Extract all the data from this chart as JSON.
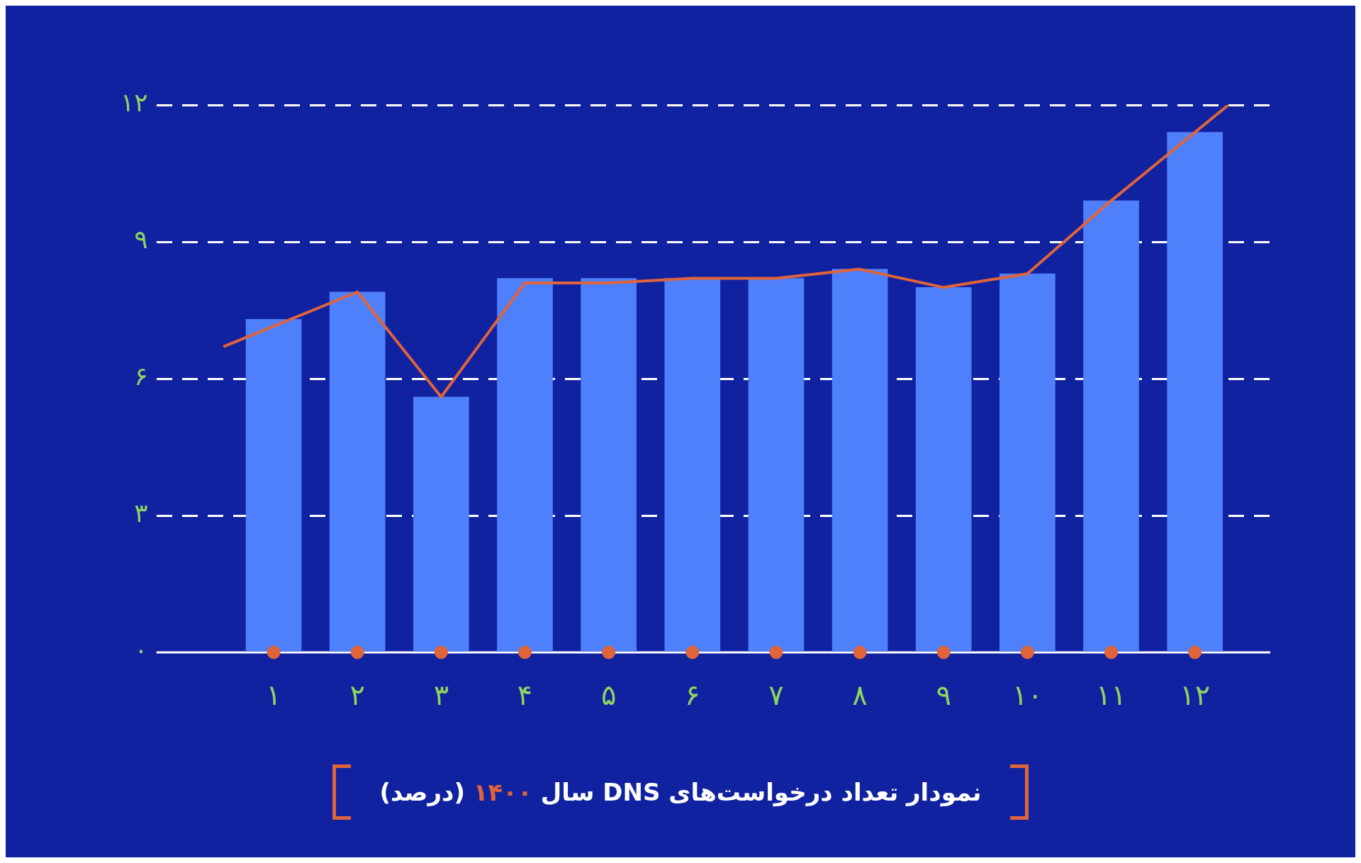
{
  "chart_data": {
    "type": "bar",
    "title": "نمودار تعداد درخواست‌های DNS سال ۱۴۰۰ (درصد)",
    "x": [
      1,
      2,
      3,
      4,
      5,
      6,
      7,
      8,
      9,
      10,
      11,
      12
    ],
    "series": [
      {
        "color": "#4f80fb",
        "values": [
          7.3,
          7.9,
          5.6,
          8.2,
          8.2,
          8.2,
          8.2,
          8.4,
          8.0,
          8.3,
          9.9,
          11.4
        ]
      },
      {
        "type": "line",
        "marker": "none",
        "color": "#e0643a",
        "x": [
          0.4,
          2,
          3,
          4,
          5,
          6,
          7,
          8,
          9,
          10,
          11,
          12.4
        ],
        "values": [
          6.7,
          7.9,
          5.6,
          8.1,
          8.1,
          8.2,
          8.2,
          8.4,
          8.0,
          8.3,
          9.9,
          12.0
        ]
      },
      {
        "type": "scatter",
        "marker": "circle",
        "color": "#e0643a",
        "values": [
          0,
          0,
          0,
          0,
          0,
          0,
          0,
          0,
          0,
          0,
          0,
          0
        ]
      }
    ],
    "xlim": [
      -0.4,
      12.9
    ],
    "xticks": [
      {
        "value": 1,
        "label": "۱"
      },
      {
        "value": 2,
        "label": "۲"
      },
      {
        "value": 3,
        "label": "۳"
      },
      {
        "value": 4,
        "label": "۴"
      },
      {
        "value": 5,
        "label": "۵"
      },
      {
        "value": 6,
        "label": "۶"
      },
      {
        "value": 7,
        "label": "۷"
      },
      {
        "value": 8,
        "label": "۸"
      },
      {
        "value": 9,
        "label": "۹"
      },
      {
        "value": 10,
        "label": "۱۰"
      },
      {
        "value": 11,
        "label": "۱۱"
      },
      {
        "value": 12,
        "label": "۱۲"
      }
    ],
    "ylim": [
      0,
      12
    ],
    "yticks": [
      {
        "value": 0,
        "label": "۰"
      },
      {
        "value": 3,
        "label": "۳"
      },
      {
        "value": 6,
        "label": "۶"
      },
      {
        "value": 9,
        "label": "۹"
      },
      {
        "value": 12,
        "label": "۱۲"
      }
    ],
    "grid": "y",
    "line_style": "solid",
    "legend": false
  }
}
